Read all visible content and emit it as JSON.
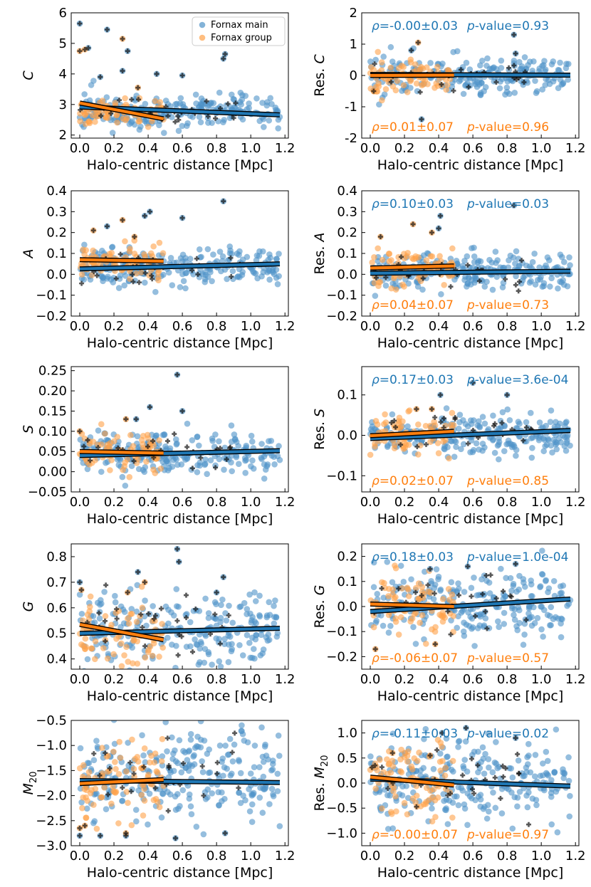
{
  "colors": {
    "main": "#1f77b4",
    "group": "#ff7f0e",
    "point_main": "#4f93c8",
    "point_group": "#ffa24a",
    "cross": "#111111"
  },
  "legend": {
    "main_label": "Fornax main",
    "group_label": "Fornax group",
    "placement": "top-right of first panel"
  },
  "chart_data": [
    {
      "type": "scatter",
      "panel": "C",
      "ylabel": "C",
      "xlabel": "Halo-centric distance [Mpc]",
      "xlim": [
        -0.05,
        1.22
      ],
      "ylim": [
        1.9,
        6.0
      ],
      "xticks": [
        "0.0",
        "0.2",
        "0.4",
        "0.6",
        "0.8",
        "1.0",
        "1.2"
      ],
      "yticks": [
        2,
        3,
        4,
        5,
        6
      ],
      "fit_main": [
        [
          0.0,
          2.92
        ],
        [
          1.17,
          2.66
        ]
      ],
      "fit_group": [
        [
          0.0,
          3.05
        ],
        [
          0.49,
          2.53
        ]
      ],
      "cloud_main": {
        "x_range": [
          0.0,
          1.17
        ],
        "center": 2.78,
        "spread": 0.28,
        "n": 240,
        "seed": 11
      },
      "cloud_group": {
        "x_range": [
          0.0,
          0.49
        ],
        "center": 2.72,
        "spread": 0.25,
        "n": 80,
        "seed": 12
      },
      "outliers_main": [
        [
          0.0,
          5.65
        ],
        [
          0.05,
          4.85
        ],
        [
          0.16,
          5.45
        ],
        [
          0.28,
          4.75
        ],
        [
          0.45,
          4.0
        ],
        [
          0.6,
          3.95
        ],
        [
          0.85,
          4.65
        ],
        [
          0.84,
          4.5
        ],
        [
          0.12,
          3.9
        ],
        [
          0.25,
          4.1
        ]
      ],
      "outliers_group": [
        [
          0.0,
          4.75
        ],
        [
          0.03,
          4.8
        ],
        [
          0.25,
          5.15
        ],
        [
          0.34,
          3.55
        ]
      ]
    },
    {
      "type": "scatter",
      "panel": "Res. C",
      "ylabel": "Res. C",
      "xlabel": "Halo-centric distance [Mpc]",
      "xlim": [
        -0.05,
        1.22
      ],
      "ylim": [
        -2.0,
        2.0
      ],
      "xticks": [
        "0.0",
        "0.2",
        "0.4",
        "0.6",
        "0.8",
        "1.0",
        "1.2"
      ],
      "yticks": [
        -2,
        -1,
        0,
        1,
        2
      ],
      "fit_main": [
        [
          0.0,
          0.03
        ],
        [
          1.17,
          0.01
        ]
      ],
      "fit_group": [
        [
          0.0,
          0.0
        ],
        [
          0.49,
          0.01
        ]
      ],
      "cloud_main": {
        "x_range": [
          0.0,
          1.17
        ],
        "center": 0.0,
        "spread": 0.3,
        "n": 240,
        "seed": 21
      },
      "cloud_group": {
        "x_range": [
          0.0,
          0.49
        ],
        "center": -0.05,
        "spread": 0.25,
        "n": 80,
        "seed": 22
      },
      "outliers_main": [
        [
          0.84,
          1.3
        ],
        [
          0.3,
          -1.4
        ],
        [
          0.24,
          0.8
        ],
        [
          0.85,
          0.7
        ]
      ],
      "outliers_group": [
        [
          0.28,
          1.05
        ],
        [
          0.02,
          -0.5
        ]
      ],
      "stats_main": {
        "rho": "ρ=-0.00±0.03",
        "pval": "p-value=0.93"
      },
      "stats_group": {
        "rho": "ρ=0.01±0.07",
        "pval": "p-value=0.96"
      }
    },
    {
      "type": "scatter",
      "panel": "A",
      "ylabel": "A",
      "xlabel": "Halo-centric distance [Mpc]",
      "xlim": [
        -0.05,
        1.22
      ],
      "ylim": [
        -0.2,
        0.4
      ],
      "xticks": [
        "0.0",
        "0.2",
        "0.4",
        "0.6",
        "0.8",
        "1.0",
        "1.2"
      ],
      "yticks": [
        "−0.2",
        "−0.1",
        "0.0",
        "0.1",
        "0.2",
        "0.3",
        "0.4"
      ],
      "fit_main": [
        [
          0.0,
          0.026
        ],
        [
          1.17,
          0.05
        ]
      ],
      "fit_group": [
        [
          0.0,
          0.07
        ],
        [
          0.49,
          0.063
        ]
      ],
      "cloud_main": {
        "x_range": [
          0.0,
          1.17
        ],
        "center": 0.035,
        "spread": 0.045,
        "n": 240,
        "seed": 31
      },
      "cloud_group": {
        "x_range": [
          0.0,
          0.49
        ],
        "center": 0.06,
        "spread": 0.05,
        "n": 80,
        "seed": 32
      },
      "outliers_main": [
        [
          0.84,
          0.35
        ],
        [
          0.41,
          0.3
        ],
        [
          0.6,
          0.27
        ],
        [
          0.16,
          0.23
        ],
        [
          0.38,
          0.28
        ]
      ],
      "outliers_group": [
        [
          0.25,
          0.26
        ],
        [
          0.08,
          0.21
        ],
        [
          0.32,
          0.18
        ]
      ]
    },
    {
      "type": "scatter",
      "panel": "Res. A",
      "ylabel": "Res. A",
      "xlabel": "Halo-centric distance [Mpc]",
      "xlim": [
        -0.05,
        1.22
      ],
      "ylim": [
        -0.2,
        0.4
      ],
      "xticks": [
        "0.0",
        "0.2",
        "0.4",
        "0.6",
        "0.8",
        "1.0",
        "1.2"
      ],
      "yticks": [
        "−0.2",
        "−0.1",
        "0.0",
        "0.1",
        "0.2",
        "0.3",
        "0.4"
      ],
      "fit_main": [
        [
          0.0,
          0.005
        ],
        [
          1.17,
          0.015
        ]
      ],
      "fit_group": [
        [
          0.0,
          0.03
        ],
        [
          0.49,
          0.04
        ]
      ],
      "cloud_main": {
        "x_range": [
          0.0,
          1.17
        ],
        "center": 0.01,
        "spread": 0.045,
        "n": 240,
        "seed": 41
      },
      "cloud_group": {
        "x_range": [
          0.0,
          0.49
        ],
        "center": 0.03,
        "spread": 0.05,
        "n": 80,
        "seed": 42
      },
      "outliers_main": [
        [
          0.41,
          0.28
        ],
        [
          0.84,
          0.33
        ],
        [
          0.4,
          0.22
        ]
      ],
      "outliers_group": [
        [
          0.25,
          0.24
        ],
        [
          0.06,
          0.18
        ],
        [
          0.36,
          0.2
        ]
      ],
      "stats_main": {
        "rho": "ρ=0.10±0.03",
        "pval": "p-value=0.03"
      },
      "stats_group": {
        "rho": "ρ=0.04±0.07",
        "pval": "p-value=0.73"
      }
    },
    {
      "type": "scatter",
      "panel": "S",
      "ylabel": "S",
      "xlabel": "Halo-centric distance [Mpc]",
      "xlim": [
        -0.05,
        1.22
      ],
      "ylim": [
        -0.05,
        0.26
      ],
      "xticks": [
        "0.0",
        "0.2",
        "0.4",
        "0.6",
        "0.8",
        "1.0",
        "1.2"
      ],
      "yticks": [
        "−0.05",
        "0.00",
        "0.05",
        "0.10",
        "0.15",
        "0.20",
        "0.25"
      ],
      "fit_main": [
        [
          0.0,
          0.04
        ],
        [
          1.17,
          0.052
        ]
      ],
      "fit_group": [
        [
          0.0,
          0.05
        ],
        [
          0.49,
          0.046
        ]
      ],
      "cloud_main": {
        "x_range": [
          0.0,
          1.17
        ],
        "center": 0.045,
        "spread": 0.025,
        "n": 240,
        "seed": 51
      },
      "cloud_group": {
        "x_range": [
          0.0,
          0.49
        ],
        "center": 0.05,
        "spread": 0.025,
        "n": 80,
        "seed": 52
      },
      "outliers_main": [
        [
          0.57,
          0.24
        ],
        [
          0.41,
          0.16
        ],
        [
          0.6,
          0.15
        ],
        [
          0.33,
          0.13
        ]
      ],
      "outliers_group": [
        [
          0.0,
          0.1
        ],
        [
          0.27,
          0.13
        ]
      ]
    },
    {
      "type": "scatter",
      "panel": "Res. S",
      "ylabel": "Res. S",
      "xlabel": "Halo-centric distance [Mpc]",
      "xlim": [
        -0.05,
        1.22
      ],
      "ylim": [
        -0.14,
        0.17
      ],
      "xticks": [
        "0.0",
        "0.2",
        "0.4",
        "0.6",
        "0.8",
        "1.0",
        "1.2"
      ],
      "yticks": [
        "−0.1",
        "0.0",
        "0.1"
      ],
      "fit_main": [
        [
          0.0,
          -0.008
        ],
        [
          1.17,
          0.012
        ]
      ],
      "fit_group": [
        [
          0.0,
          -0.001
        ],
        [
          0.49,
          0.01
        ]
      ],
      "cloud_main": {
        "x_range": [
          0.0,
          1.17
        ],
        "center": 0.002,
        "spread": 0.025,
        "n": 240,
        "seed": 61
      },
      "cloud_group": {
        "x_range": [
          0.0,
          0.49
        ],
        "center": 0.005,
        "spread": 0.025,
        "n": 80,
        "seed": 62
      },
      "outliers_main": [
        [
          0.41,
          0.1
        ],
        [
          0.6,
          0.13
        ],
        [
          0.8,
          0.1
        ]
      ],
      "outliers_group": [
        [
          0.27,
          0.065
        ],
        [
          0.36,
          0.065
        ]
      ],
      "stats_main": {
        "rho": "ρ=0.17±0.03",
        "pval": "p-value=3.6e-04"
      },
      "stats_group": {
        "rho": "ρ=0.02±0.07",
        "pval": "p-value=0.85"
      }
    },
    {
      "type": "scatter",
      "panel": "G",
      "ylabel": "G",
      "xlabel": "Halo-centric distance [Mpc]",
      "xlim": [
        -0.05,
        1.22
      ],
      "ylim": [
        0.36,
        0.85
      ],
      "xticks": [
        "0.0",
        "0.2",
        "0.4",
        "0.6",
        "0.8",
        "1.0",
        "1.2"
      ],
      "yticks": [
        "0.4",
        "0.5",
        "0.6",
        "0.7",
        "0.8"
      ],
      "fit_main": [
        [
          0.0,
          0.5
        ],
        [
          1.17,
          0.52
        ]
      ],
      "fit_group": [
        [
          0.0,
          0.535
        ],
        [
          0.49,
          0.475
        ]
      ],
      "cloud_main": {
        "x_range": [
          0.0,
          1.17
        ],
        "center": 0.52,
        "spread": 0.075,
        "n": 240,
        "seed": 71
      },
      "cloud_group": {
        "x_range": [
          0.0,
          0.49
        ],
        "center": 0.49,
        "spread": 0.065,
        "n": 80,
        "seed": 72
      },
      "outliers_main": [
        [
          0.57,
          0.83
        ],
        [
          0.58,
          0.78
        ],
        [
          0.34,
          0.74
        ],
        [
          0.0,
          0.7
        ],
        [
          0.84,
          0.72
        ],
        [
          0.8,
          0.66
        ]
      ],
      "outliers_group": [
        [
          0.01,
          0.67
        ],
        [
          0.38,
          0.7
        ],
        [
          0.28,
          0.66
        ]
      ]
    },
    {
      "type": "scatter",
      "panel": "Res. G",
      "ylabel": "Res. G",
      "xlabel": "Halo-centric distance [Mpc]",
      "xlim": [
        -0.05,
        1.22
      ],
      "ylim": [
        -0.25,
        0.25
      ],
      "xticks": [
        "0.0",
        "0.2",
        "0.4",
        "0.6",
        "0.8",
        "1.0",
        "1.2"
      ],
      "yticks": [
        "−0.2",
        "−0.1",
        "0.0",
        "0.1",
        "0.2"
      ],
      "fit_main": [
        [
          0.0,
          -0.02
        ],
        [
          1.17,
          0.03
        ]
      ],
      "fit_group": [
        [
          0.0,
          0.01
        ],
        [
          0.49,
          0.0
        ]
      ],
      "cloud_main": {
        "x_range": [
          0.0,
          1.17
        ],
        "center": 0.01,
        "spread": 0.07,
        "n": 240,
        "seed": 81
      },
      "cloud_group": {
        "x_range": [
          0.0,
          0.49
        ],
        "center": 0.0,
        "spread": 0.06,
        "n": 80,
        "seed": 82
      },
      "outliers_main": [
        [
          0.57,
          0.16
        ],
        [
          0.35,
          0.15
        ],
        [
          0.85,
          0.17
        ]
      ],
      "outliers_group": [
        [
          0.03,
          -0.17
        ],
        [
          0.38,
          -0.15
        ]
      ],
      "stats_main": {
        "rho": "ρ=0.18±0.03",
        "pval": "p-value=1.0e-04"
      },
      "stats_group": {
        "rho": "ρ=-0.06±0.07",
        "pval": "p-value=0.57"
      }
    },
    {
      "type": "scatter",
      "panel": "M20",
      "ylabel": "M",
      "ylabel_sub": "20",
      "xlabel": "Halo-centric distance [Mpc]",
      "xlim": [
        -0.05,
        1.22
      ],
      "ylim": [
        -3.0,
        -0.5
      ],
      "xticks": [
        "0.0",
        "0.2",
        "0.4",
        "0.6",
        "0.8",
        "1.0",
        "1.2"
      ],
      "yticks": [
        "−3.0",
        "−2.5",
        "−2.0",
        "−1.5",
        "−1.0",
        "−0.5"
      ],
      "fit_main": [
        [
          0.0,
          -1.7
        ],
        [
          1.17,
          -1.74
        ]
      ],
      "fit_group": [
        [
          0.0,
          -1.76
        ],
        [
          0.49,
          -1.68
        ]
      ],
      "cloud_main": {
        "x_range": [
          0.0,
          1.17
        ],
        "center": -1.65,
        "spread": 0.45,
        "n": 260,
        "seed": 91
      },
      "cloud_group": {
        "x_range": [
          0.0,
          0.49
        ],
        "center": -1.75,
        "spread": 0.4,
        "n": 85,
        "seed": 92
      },
      "outliers_main": [
        [
          0.0,
          -2.8
        ],
        [
          0.12,
          -2.8
        ],
        [
          0.27,
          -2.8
        ],
        [
          0.56,
          -2.85
        ],
        [
          0.85,
          -2.75
        ]
      ],
      "outliers_group": [
        [
          0.0,
          -2.65
        ],
        [
          0.03,
          -2.6
        ],
        [
          0.27,
          -2.75
        ]
      ]
    },
    {
      "type": "scatter",
      "panel": "Res. M20",
      "ylabel": "Res. M",
      "ylabel_sub": "20",
      "xlabel": "Halo-centric distance [Mpc]",
      "xlim": [
        -0.05,
        1.22
      ],
      "ylim": [
        -1.25,
        1.25
      ],
      "xticks": [
        "0.0",
        "0.2",
        "0.4",
        "0.6",
        "0.8",
        "1.0",
        "1.2"
      ],
      "yticks": [
        "−1.0",
        "−0.5",
        "0.0",
        "0.5",
        "1.0"
      ],
      "fit_main": [
        [
          0.0,
          0.08
        ],
        [
          1.17,
          -0.06
        ]
      ],
      "fit_group": [
        [
          0.0,
          0.12
        ],
        [
          0.49,
          -0.04
        ]
      ],
      "cloud_main": {
        "x_range": [
          0.0,
          1.17
        ],
        "center": 0.05,
        "spread": 0.4,
        "n": 260,
        "seed": 101
      },
      "cloud_group": {
        "x_range": [
          0.0,
          0.49
        ],
        "center": 0.05,
        "spread": 0.35,
        "n": 85,
        "seed": 102
      },
      "outliers_main": [
        [
          0.56,
          1.1
        ],
        [
          0.42,
          1.0
        ],
        [
          0.85,
          0.9
        ]
      ],
      "outliers_group": [
        [
          0.13,
          0.6
        ],
        [
          0.35,
          0.55
        ]
      ],
      "stats_main": {
        "rho": "ρ=-0.11±0.03",
        "pval": "p-value=0.02"
      },
      "stats_group": {
        "rho": "ρ=-0.00±0.07",
        "pval": "p-value=0.97"
      }
    }
  ]
}
